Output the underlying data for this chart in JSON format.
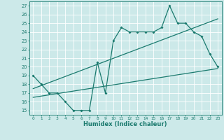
{
  "xlabel": "Humidex (Indice chaleur)",
  "xlim": [
    -0.5,
    23.5
  ],
  "ylim": [
    14.5,
    27.5
  ],
  "xticks": [
    0,
    1,
    2,
    3,
    4,
    5,
    6,
    7,
    8,
    9,
    10,
    11,
    12,
    13,
    14,
    15,
    16,
    17,
    18,
    19,
    20,
    21,
    22,
    23
  ],
  "yticks": [
    15,
    16,
    17,
    18,
    19,
    20,
    21,
    22,
    23,
    24,
    25,
    26,
    27
  ],
  "bg_color": "#cce9e9",
  "line_color": "#1a7a6e",
  "grid_color": "#ffffff",
  "line1_x": [
    0,
    1,
    2,
    3,
    4,
    5,
    6,
    7,
    8,
    9,
    10,
    11,
    12,
    13,
    14,
    15,
    16,
    17,
    18,
    19,
    20,
    21,
    22,
    23
  ],
  "line1_y": [
    19,
    18,
    17,
    17,
    16,
    15,
    15,
    15,
    20.5,
    17,
    23,
    24.5,
    24,
    24,
    24,
    24,
    24.5,
    27,
    25,
    25,
    24,
    23.5,
    21.5,
    20
  ],
  "line2_x": [
    0,
    23
  ],
  "line2_y": [
    17.5,
    25.5
  ],
  "line3_x": [
    0,
    23
  ],
  "line3_y": [
    16.5,
    19.8
  ]
}
